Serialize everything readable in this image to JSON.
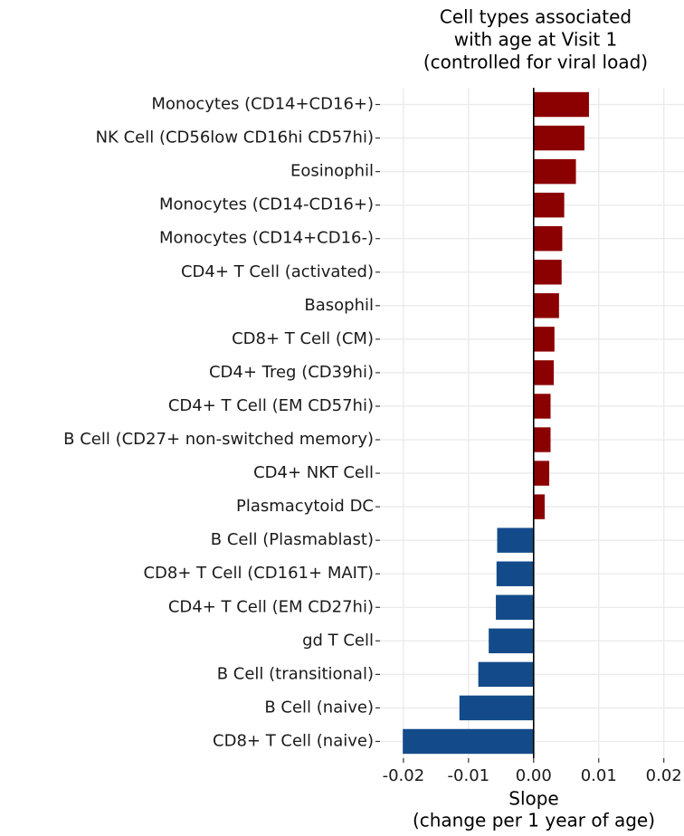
{
  "chart_data": {
    "type": "bar",
    "orientation": "horizontal",
    "title": [
      "Cell types associated",
      "with age at Visit 1",
      "(controlled for viral load)"
    ],
    "xlabel": [
      "Slope",
      "(change per 1 year of age)"
    ],
    "categories": [
      "Monocytes (CD14+CD16+)",
      "NK Cell (CD56low CD16hi CD57hi)",
      "Eosinophil",
      "Monocytes (CD14-CD16+)",
      "Monocytes (CD14+CD16-)",
      "CD4+ T Cell (activated)",
      "Basophil",
      "CD8+ T Cell (CM)",
      "CD4+ Treg (CD39hi)",
      "CD4+ T Cell (EM CD57hi)",
      "B Cell (CD27+ non-switched memory)",
      "CD4+ NKT Cell",
      "Plasmacytoid DC",
      "B Cell (Plasmablast)",
      "CD8+ T Cell (CD161+ MAIT)",
      "CD4+ T Cell (EM CD27hi)",
      "gd T Cell",
      "B Cell (transitional)",
      "B Cell (naive)",
      "CD8+ T Cell (naive)"
    ],
    "values": [
      0.0085,
      0.0078,
      0.0065,
      0.0047,
      0.0044,
      0.0043,
      0.0039,
      0.0032,
      0.0031,
      0.0026,
      0.0026,
      0.0024,
      0.0017,
      -0.0056,
      -0.0057,
      -0.0058,
      -0.0069,
      -0.0085,
      -0.0114,
      -0.0201
    ],
    "colors": {
      "positive": "#8b0000",
      "negative": "#134b8a"
    },
    "xlim": [
      -0.0236,
      0.0231
    ],
    "xticks": [
      -0.02,
      -0.01,
      {
        "value": 0,
        "label": "0.00"
      },
      0.01,
      0.02
    ],
    "grid": true
  }
}
